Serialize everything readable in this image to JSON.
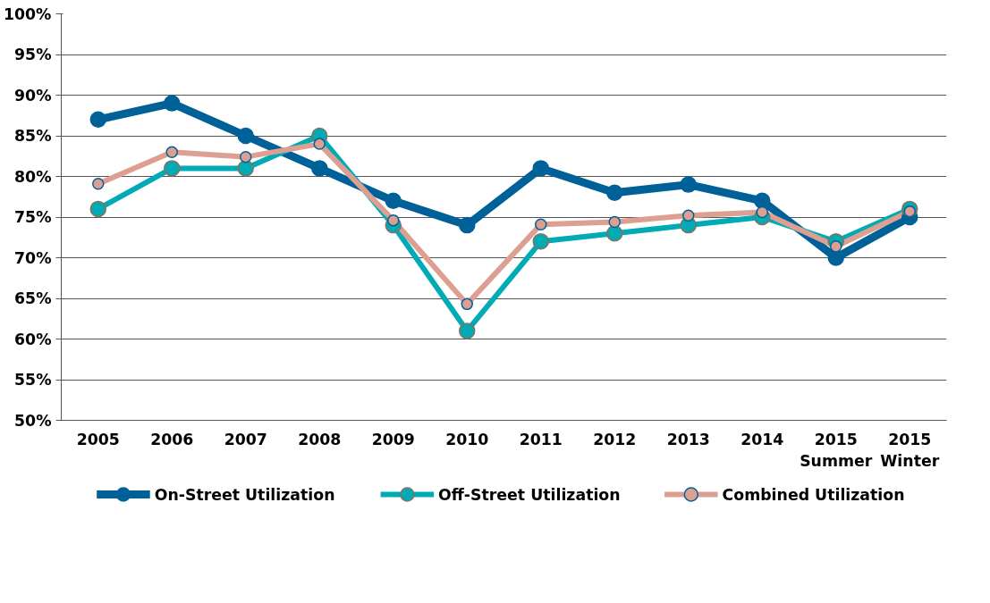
{
  "chart_data": {
    "type": "line",
    "categories": [
      "2005",
      "2006",
      "2007",
      "2008",
      "2009",
      "2010",
      "2011",
      "2012",
      "2013",
      "2014",
      "2015\nSummer",
      "2015\nWinter"
    ],
    "series": [
      {
        "name": "On-Street Utilization",
        "color": "#006199",
        "values": [
          87,
          89,
          85,
          81,
          77,
          74,
          81,
          78,
          79,
          77,
          70,
          75
        ]
      },
      {
        "name": "Off-Street Utilization",
        "color": "#00abb5",
        "values": [
          76,
          81,
          81,
          85,
          74,
          61,
          72,
          73,
          74,
          75,
          72,
          76
        ]
      },
      {
        "name": "Combined Utilization",
        "color": "#dc9f91",
        "values": [
          79.1,
          83.0,
          82.4,
          84.0,
          74.6,
          64.3,
          74.1,
          74.4,
          75.2,
          75.6,
          71.4,
          75.7
        ]
      }
    ],
    "ylim": [
      50,
      100
    ],
    "yticks": [
      {
        "value": 50,
        "label": "50%"
      },
      {
        "value": 55,
        "label": "55%"
      },
      {
        "value": 60,
        "label": "60%"
      },
      {
        "value": 65,
        "label": "65%"
      },
      {
        "value": 70,
        "label": "70%"
      },
      {
        "value": 75,
        "label": "75%"
      },
      {
        "value": 80,
        "label": "80%"
      },
      {
        "value": 85,
        "label": "85%"
      },
      {
        "value": 90,
        "label": "90%"
      },
      {
        "value": 95,
        "label": "95%"
      },
      {
        "value": 100,
        "label": "100%"
      }
    ],
    "grid": "y",
    "legend": "bottom",
    "marker": "circle",
    "line_style": "solid"
  }
}
